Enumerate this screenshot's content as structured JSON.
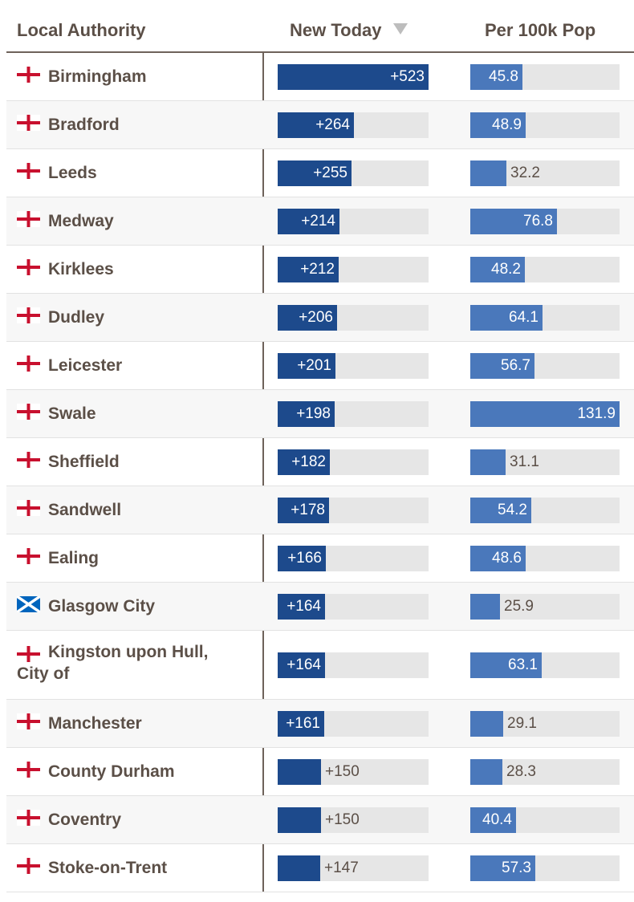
{
  "chart_data": {
    "type": "table",
    "columns": [
      "Local Authority",
      "New Today",
      "Per 100k Pop"
    ],
    "sorted_by": "New Today",
    "sort_direction": "descending",
    "colors": {
      "new_today_bar": "#1d4a8c",
      "per_100k_bar": "#4a78bb",
      "bar_track": "#e6e6e6",
      "england_flag_cross": "#c8102e",
      "scotland_flag_blue": "#0065bd"
    },
    "scales": {
      "new_today_max": 523,
      "per_100k_max": 131.9
    },
    "rows": [
      {
        "name": "Birmingham",
        "flag": "england-flag-icon",
        "new_today": 523,
        "new_label": "+523",
        "per_100k": 45.8,
        "per_label": "45.8"
      },
      {
        "name": "Bradford",
        "flag": "england-flag-icon",
        "new_today": 264,
        "new_label": "+264",
        "per_100k": 48.9,
        "per_label": "48.9"
      },
      {
        "name": "Leeds",
        "flag": "england-flag-icon",
        "new_today": 255,
        "new_label": "+255",
        "per_100k": 32.2,
        "per_label": "32.2"
      },
      {
        "name": "Medway",
        "flag": "england-flag-icon",
        "new_today": 214,
        "new_label": "+214",
        "per_100k": 76.8,
        "per_label": "76.8"
      },
      {
        "name": "Kirklees",
        "flag": "england-flag-icon",
        "new_today": 212,
        "new_label": "+212",
        "per_100k": 48.2,
        "per_label": "48.2"
      },
      {
        "name": "Dudley",
        "flag": "england-flag-icon",
        "new_today": 206,
        "new_label": "+206",
        "per_100k": 64.1,
        "per_label": "64.1"
      },
      {
        "name": "Leicester",
        "flag": "england-flag-icon",
        "new_today": 201,
        "new_label": "+201",
        "per_100k": 56.7,
        "per_label": "56.7"
      },
      {
        "name": "Swale",
        "flag": "england-flag-icon",
        "new_today": 198,
        "new_label": "+198",
        "per_100k": 131.9,
        "per_label": "131.9"
      },
      {
        "name": "Sheffield",
        "flag": "england-flag-icon",
        "new_today": 182,
        "new_label": "+182",
        "per_100k": 31.1,
        "per_label": "31.1"
      },
      {
        "name": "Sandwell",
        "flag": "england-flag-icon",
        "new_today": 178,
        "new_label": "+178",
        "per_100k": 54.2,
        "per_label": "54.2"
      },
      {
        "name": "Ealing",
        "flag": "england-flag-icon",
        "new_today": 166,
        "new_label": "+166",
        "per_100k": 48.6,
        "per_label": "48.6"
      },
      {
        "name": "Glasgow City",
        "flag": "scotland-flag-icon",
        "new_today": 164,
        "new_label": "+164",
        "per_100k": 25.9,
        "per_label": "25.9"
      },
      {
        "name": "Kingston upon Hull, City of",
        "flag": "england-flag-icon",
        "new_today": 164,
        "new_label": "+164",
        "per_100k": 63.1,
        "per_label": "63.1",
        "wrap": true
      },
      {
        "name": "Manchester",
        "flag": "england-flag-icon",
        "new_today": 161,
        "new_label": "+161",
        "per_100k": 29.1,
        "per_label": "29.1"
      },
      {
        "name": "County Durham",
        "flag": "england-flag-icon",
        "new_today": 150,
        "new_label": "+150",
        "per_100k": 28.3,
        "per_label": "28.3"
      },
      {
        "name": "Coventry",
        "flag": "england-flag-icon",
        "new_today": 150,
        "new_label": "+150",
        "per_100k": 40.4,
        "per_label": "40.4"
      },
      {
        "name": "Stoke-on-Trent",
        "flag": "england-flag-icon",
        "new_today": 147,
        "new_label": "+147",
        "per_100k": 57.3,
        "per_label": "57.3"
      }
    ]
  }
}
